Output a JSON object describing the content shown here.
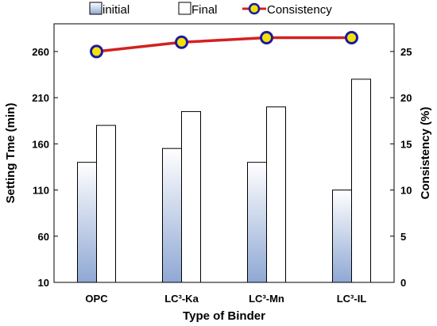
{
  "chart_data": {
    "type": "bar",
    "categories": [
      "OPC",
      "LC³-Ka",
      "LC³-Mn",
      "LC³-IL"
    ],
    "series": [
      {
        "name": "initial",
        "values": [
          140,
          155,
          140,
          110
        ],
        "axis": "left",
        "style": "gradient-blue"
      },
      {
        "name": "Final",
        "values": [
          180,
          195,
          200,
          230
        ],
        "axis": "left",
        "style": "white"
      },
      {
        "name": "Consistency",
        "values": [
          25,
          26,
          26.5,
          26.5
        ],
        "axis": "right",
        "type": "line"
      }
    ],
    "xlabel": "Type of Binder",
    "ylabel": "Setting Tme (min)",
    "y2label": "Consistency (%)",
    "ylim": [
      10,
      290
    ],
    "yticks": [
      10,
      60,
      110,
      160,
      210,
      260
    ],
    "y2lim": [
      0,
      28
    ],
    "y2ticks": [
      0,
      5,
      10,
      15,
      20,
      25
    ],
    "grid": false,
    "legend_position": "top",
    "colors": {
      "bar_gradient_top": "#ffffff",
      "bar_gradient_bottom": "#8fa8d4",
      "line": "#d42020",
      "marker_fill": "#f2e20a",
      "marker_edge": "#1a1aa0"
    }
  }
}
